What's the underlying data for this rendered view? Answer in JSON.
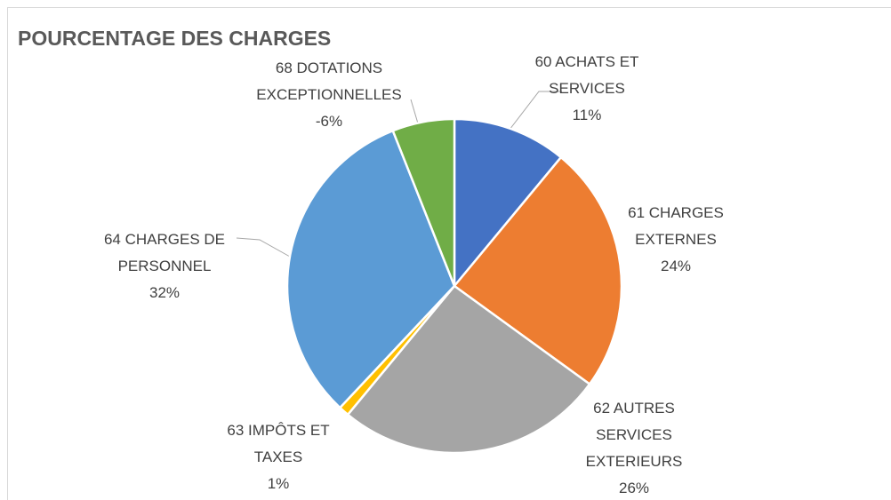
{
  "chart_data": {
    "type": "pie",
    "title": "POURCENTAGE DES CHARGES",
    "categories": [
      "60 ACHATS ET SERVICES",
      "61 CHARGES EXTERNES",
      "62 AUTRES SERVICES EXTERIEURS",
      "63 IMPÔTS ET TAXES",
      "64 CHARGES DE PERSONNEL",
      "68 DOTATIONS EXCEPTIONNELLES"
    ],
    "values": [
      11,
      24,
      26,
      1,
      32,
      -6
    ],
    "value_labels": [
      "11%",
      "24%",
      "26%",
      "1%",
      "32%",
      "-6%"
    ],
    "colors": [
      "#4472c4",
      "#ed7d31",
      "#a5a5a5",
      "#ffc000",
      "#5b9bd5",
      "#70ad47"
    ]
  }
}
